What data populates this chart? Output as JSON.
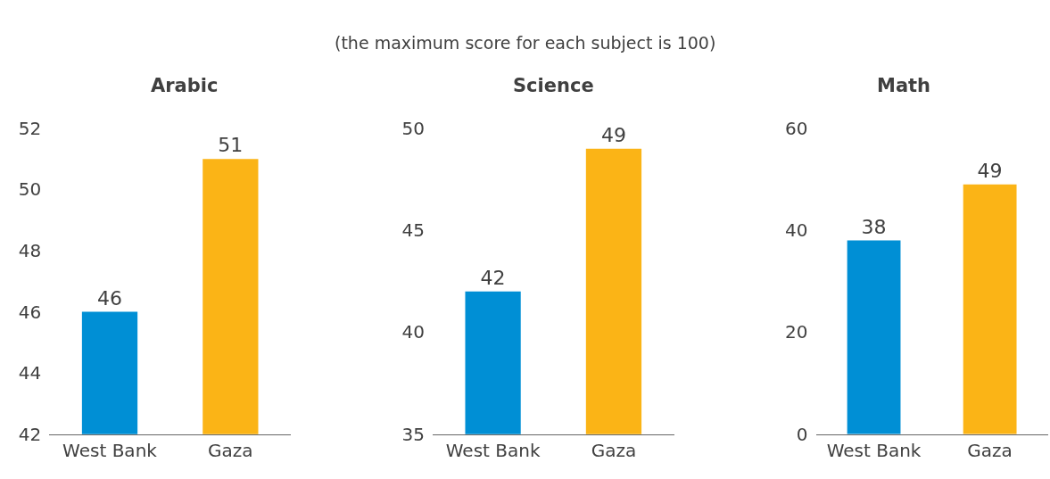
{
  "chart_data": [
    {
      "type": "bar",
      "title": "Arabic",
      "annotations": [
        "(the maximum score for each subject is 100)"
      ],
      "categories": [
        "West Bank",
        "Gaza"
      ],
      "values": [
        46,
        51
      ],
      "colors": [
        "#008fd5",
        "#fbb416"
      ],
      "ylim": [
        42,
        52
      ],
      "yticks": [
        42,
        44,
        46,
        48,
        50,
        52
      ],
      "data_labels": true
    },
    {
      "type": "bar",
      "title": "Science",
      "categories": [
        "West Bank",
        "Gaza"
      ],
      "values": [
        42,
        49
      ],
      "colors": [
        "#008fd5",
        "#fbb416"
      ],
      "ylim": [
        35,
        50
      ],
      "yticks": [
        35,
        40,
        45,
        50
      ],
      "data_labels": true
    },
    {
      "type": "bar",
      "title": "Math",
      "categories": [
        "West Bank",
        "Gaza"
      ],
      "values": [
        38,
        49
      ],
      "colors": [
        "#008fd5",
        "#fbb416"
      ],
      "ylim": [
        0,
        60
      ],
      "yticks": [
        0,
        20,
        40,
        60
      ],
      "data_labels": true
    }
  ]
}
